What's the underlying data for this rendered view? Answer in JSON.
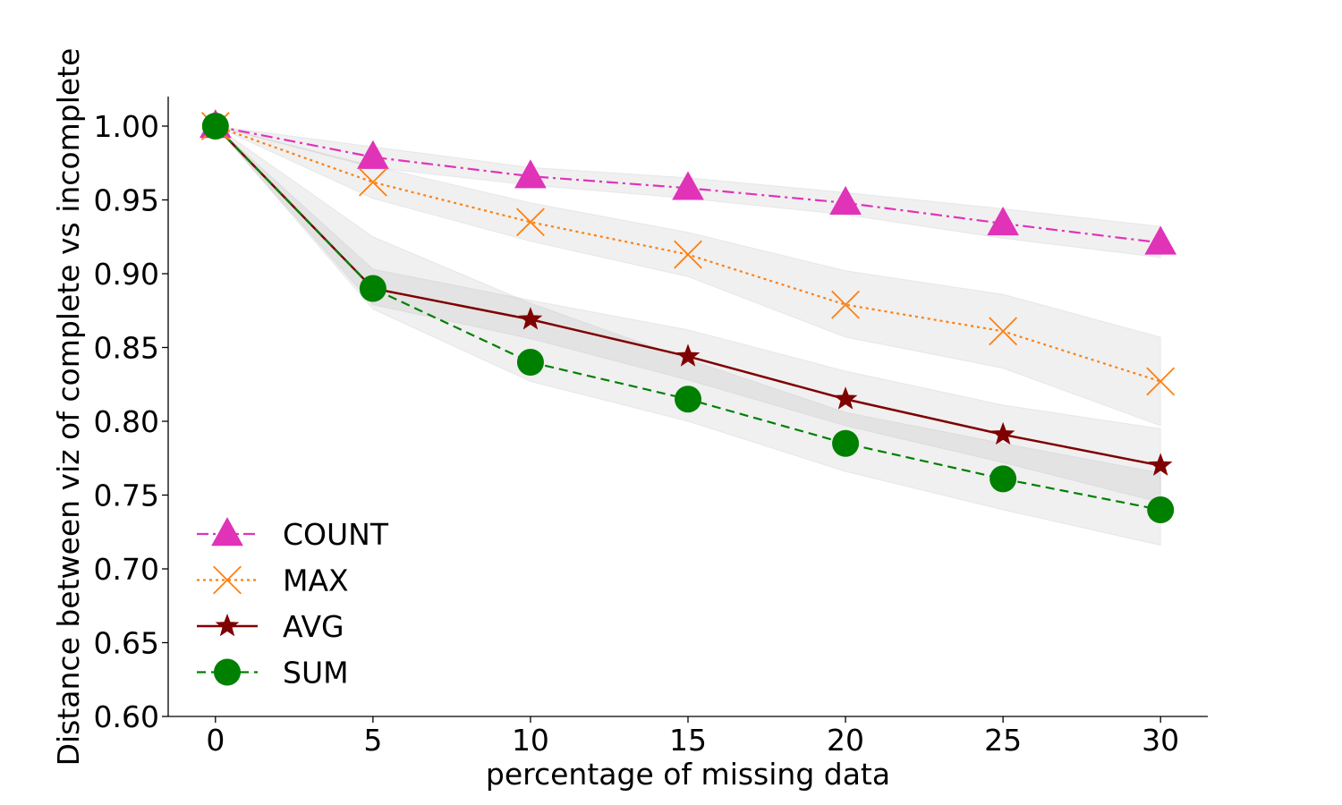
{
  "chart_data": {
    "type": "line",
    "title": "",
    "xlabel": "percentage of missing data",
    "ylabel": "Distance between viz of complete vs incomplete",
    "xlim": [
      -1.5,
      31.5
    ],
    "ylim": [
      0.6,
      1.02
    ],
    "xticks": [
      "0",
      "5",
      "10",
      "15",
      "20",
      "25",
      "30"
    ],
    "yticks": [
      "0.60",
      "0.65",
      "0.70",
      "0.75",
      "0.80",
      "0.85",
      "0.90",
      "0.95",
      "1.00"
    ],
    "grid": false,
    "legend_position": "lower-left",
    "x": [
      0,
      5,
      10,
      15,
      20,
      25,
      30
    ],
    "series": [
      {
        "name": "COUNT",
        "values": [
          1.0,
          0.979,
          0.966,
          0.958,
          0.948,
          0.934,
          0.921
        ],
        "band_lower": [
          1.0,
          0.972,
          0.96,
          0.951,
          0.94,
          0.924,
          0.911
        ],
        "band_upper": [
          1.0,
          0.986,
          0.972,
          0.965,
          0.955,
          0.944,
          0.932
        ],
        "color": "#e033b8",
        "linestyle": "dashdot",
        "marker": "triangle"
      },
      {
        "name": "MAX",
        "values": [
          1.0,
          0.962,
          0.935,
          0.913,
          0.879,
          0.861,
          0.827
        ],
        "band_lower": [
          1.0,
          0.951,
          0.922,
          0.898,
          0.857,
          0.836,
          0.797
        ],
        "band_upper": [
          1.0,
          0.973,
          0.948,
          0.928,
          0.902,
          0.886,
          0.857
        ],
        "color": "#ff7f0e",
        "linestyle": "dotted",
        "marker": "x"
      },
      {
        "name": "AVG",
        "values": [
          1.0,
          0.89,
          0.869,
          0.844,
          0.815,
          0.791,
          0.77
        ],
        "band_lower": [
          1.0,
          0.879,
          0.856,
          0.828,
          0.797,
          0.772,
          0.745
        ],
        "band_upper": [
          1.0,
          0.903,
          0.882,
          0.862,
          0.834,
          0.811,
          0.795
        ],
        "color": "#7f0000",
        "linestyle": "solid",
        "marker": "star"
      },
      {
        "name": "SUM",
        "values": [
          1.0,
          0.89,
          0.84,
          0.815,
          0.785,
          0.761,
          0.74
        ],
        "band_lower": [
          1.0,
          0.876,
          0.827,
          0.8,
          0.766,
          0.74,
          0.716
        ],
        "band_upper": [
          1.0,
          0.925,
          0.88,
          0.842,
          0.806,
          0.785,
          0.765
        ],
        "color": "#008000",
        "linestyle": "dashed",
        "marker": "circle"
      }
    ]
  }
}
